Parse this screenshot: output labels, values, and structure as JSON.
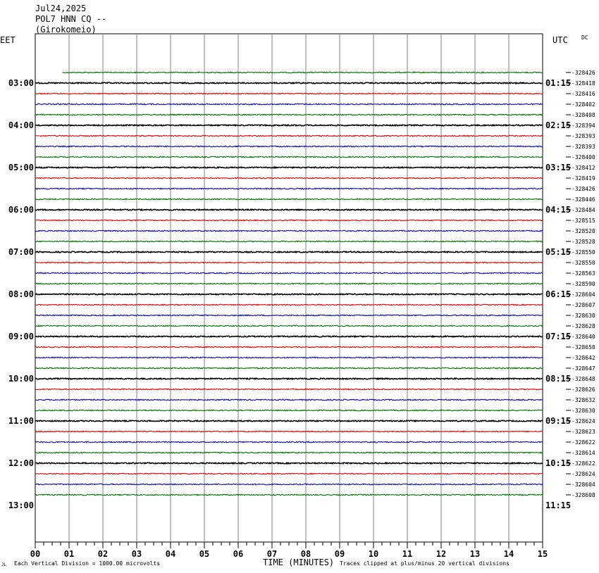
{
  "header": {
    "date": "Jul24,2025",
    "station": "POL7 HNN CQ --",
    "location": "(Girokomeio)",
    "left_tz": "EET",
    "right_tz": "UTC",
    "dc": "DC"
  },
  "footer": {
    "scale_note": "Each Vertical Division = 1000.00 microvolts",
    "xlabel": "TIME (MINUTES)",
    "clip_note": "Traces clipped at plus/minus 20 vertical divisions",
    "corner_mark": "JL"
  },
  "chart_data": {
    "type": "line",
    "title": "",
    "xlabel": "TIME (MINUTES)",
    "xlim": [
      0,
      15
    ],
    "x_ticks": [
      "00",
      "01",
      "02",
      "03",
      "04",
      "05",
      "06",
      "07",
      "08",
      "09",
      "10",
      "11",
      "12",
      "13",
      "14",
      "15"
    ],
    "row_interval_minutes": 15,
    "trace_colors": [
      "#000000",
      "#e00000",
      "#0000c0",
      "#007000"
    ],
    "left_hour_labels": [
      "03:00",
      "04:00",
      "05:00",
      "06:00",
      "07:00",
      "08:00",
      "09:00",
      "10:00",
      "11:00",
      "12:00",
      "13:00"
    ],
    "right_hour_labels": [
      "01:15",
      "02:15",
      "03:15",
      "04:15",
      "05:15",
      "06:15",
      "07:15",
      "08:15",
      "09:15",
      "10:15",
      "11:15"
    ],
    "first_trace_start_minute": 0.8,
    "traces": [
      {
        "row": 3,
        "dc": "-328426"
      },
      {
        "row": 4,
        "dc": "-328418"
      },
      {
        "row": 5,
        "dc": "-328416"
      },
      {
        "row": 6,
        "dc": "-328402"
      },
      {
        "row": 7,
        "dc": "-328408"
      },
      {
        "row": 8,
        "dc": "-328394"
      },
      {
        "row": 9,
        "dc": "-328393"
      },
      {
        "row": 10,
        "dc": "-328393"
      },
      {
        "row": 11,
        "dc": "-328400"
      },
      {
        "row": 12,
        "dc": "-328412"
      },
      {
        "row": 13,
        "dc": "-328419"
      },
      {
        "row": 14,
        "dc": "-328426"
      },
      {
        "row": 15,
        "dc": "-328446"
      },
      {
        "row": 16,
        "dc": "-328484"
      },
      {
        "row": 17,
        "dc": "-328515"
      },
      {
        "row": 18,
        "dc": "-328520"
      },
      {
        "row": 19,
        "dc": "-328528"
      },
      {
        "row": 20,
        "dc": "-328550"
      },
      {
        "row": 21,
        "dc": "-328550"
      },
      {
        "row": 22,
        "dc": "-328563"
      },
      {
        "row": 23,
        "dc": "-328590"
      },
      {
        "row": 24,
        "dc": "-328604"
      },
      {
        "row": 25,
        "dc": "-328607"
      },
      {
        "row": 26,
        "dc": "-328630"
      },
      {
        "row": 27,
        "dc": "-328628"
      },
      {
        "row": 28,
        "dc": "-328640"
      },
      {
        "row": 29,
        "dc": "-328650"
      },
      {
        "row": 30,
        "dc": "-328642"
      },
      {
        "row": 31,
        "dc": "-328647"
      },
      {
        "row": 32,
        "dc": "-328648"
      },
      {
        "row": 33,
        "dc": "-328626"
      },
      {
        "row": 34,
        "dc": "-328632"
      },
      {
        "row": 35,
        "dc": "-328630"
      },
      {
        "row": 36,
        "dc": "-328624"
      },
      {
        "row": 37,
        "dc": "-328623"
      },
      {
        "row": 38,
        "dc": "-328622"
      },
      {
        "row": 39,
        "dc": "-328614"
      },
      {
        "row": 40,
        "dc": "-328622"
      },
      {
        "row": 41,
        "dc": "-328624"
      },
      {
        "row": 42,
        "dc": "-328604"
      },
      {
        "row": 43,
        "dc": "-328608"
      }
    ]
  }
}
